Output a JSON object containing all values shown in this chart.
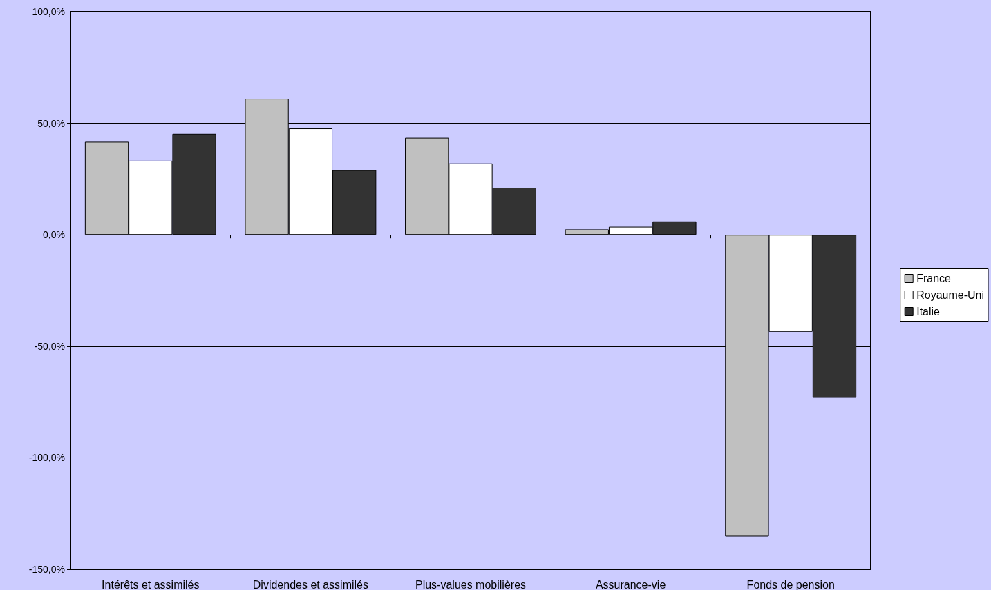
{
  "chart_data": {
    "type": "bar",
    "categories": [
      "Intérêts et assimilés",
      "Dividendes et assimilés",
      "Plus-values mobilières",
      "Assurance-vie",
      "Fonds de pension"
    ],
    "series": [
      {
        "name": "France",
        "color": "#c0c0c0",
        "values": [
          41.7,
          61.0,
          43.5,
          2.4,
          -135.3
        ]
      },
      {
        "name": "Royaume-Uni",
        "color": "#ffffff",
        "values": [
          33.2,
          47.7,
          32.0,
          3.6,
          -43.5
        ]
      },
      {
        "name": "Italie",
        "color": "#333333",
        "values": [
          45.3,
          29.0,
          21.1,
          6.0,
          -73.1
        ]
      }
    ],
    "ylim": [
      -150,
      100
    ],
    "yticks": [
      {
        "value": -150,
        "label": "-150,0%"
      },
      {
        "value": -100,
        "label": "-100,0%"
      },
      {
        "value": -50,
        "label": "-50,0%"
      },
      {
        "value": 0,
        "label": "0,0%"
      },
      {
        "value": 50,
        "label": "50,0%"
      },
      {
        "value": 100,
        "label": "100,0%"
      }
    ],
    "grid": "y",
    "legend": "right"
  }
}
